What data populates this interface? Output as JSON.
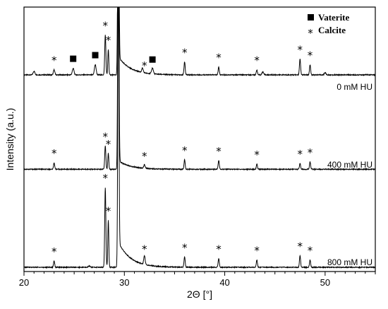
{
  "chart_data": {
    "type": "line",
    "xlabel": "2Θ [°]",
    "ylabel": "Intensity (a.u.)",
    "xlim": [
      20,
      55
    ],
    "xticks": [
      20,
      30,
      40,
      50
    ],
    "grid": false,
    "legend_position": "top-right",
    "legend": [
      {
        "marker": "square",
        "label": "Vaterite"
      },
      {
        "marker": "*",
        "label": "Calcite"
      }
    ],
    "series": [
      {
        "name": "0 mM HU",
        "baseline": 2.65,
        "peaks": [
          {
            "x": 21.0,
            "h": 0.05,
            "w": 0.12
          },
          {
            "x": 23.0,
            "h": 0.07,
            "w": 0.1
          },
          {
            "x": 24.9,
            "h": 0.09,
            "w": 0.12
          },
          {
            "x": 27.1,
            "h": 0.14,
            "w": 0.12
          },
          {
            "x": 28.1,
            "h": 0.55,
            "w": 0.08
          },
          {
            "x": 28.4,
            "h": 0.35,
            "w": 0.07
          },
          {
            "x": 29.4,
            "h": 4.0,
            "w": 0.08
          },
          {
            "x": 31.8,
            "h": 0.06,
            "w": 0.1
          },
          {
            "x": 32.8,
            "h": 0.08,
            "w": 0.12
          },
          {
            "x": 36.0,
            "h": 0.18,
            "w": 0.08
          },
          {
            "x": 39.4,
            "h": 0.11,
            "w": 0.08
          },
          {
            "x": 43.2,
            "h": 0.07,
            "w": 0.08
          },
          {
            "x": 43.8,
            "h": 0.04,
            "w": 0.12
          },
          {
            "x": 47.5,
            "h": 0.22,
            "w": 0.08
          },
          {
            "x": 48.5,
            "h": 0.14,
            "w": 0.08
          },
          {
            "x": 50.0,
            "h": 0.03,
            "w": 0.12
          }
        ],
        "hump": {
          "start": 29.4,
          "height": 0.25,
          "decay": 1.2
        },
        "stars": [
          23.0,
          28.1,
          28.4,
          32.0,
          36.0,
          39.4,
          43.2,
          47.5,
          48.5
        ],
        "squares": [
          24.9,
          27.1,
          32.8
        ]
      },
      {
        "name": "400 mM HU",
        "baseline": 1.35,
        "peaks": [
          {
            "x": 23.0,
            "h": 0.09,
            "w": 0.08
          },
          {
            "x": 28.1,
            "h": 0.32,
            "w": 0.08
          },
          {
            "x": 28.4,
            "h": 0.22,
            "w": 0.07
          },
          {
            "x": 29.4,
            "h": 4.0,
            "w": 0.08
          },
          {
            "x": 32.0,
            "h": 0.05,
            "w": 0.1
          },
          {
            "x": 36.0,
            "h": 0.13,
            "w": 0.08
          },
          {
            "x": 39.4,
            "h": 0.12,
            "w": 0.08
          },
          {
            "x": 43.2,
            "h": 0.07,
            "w": 0.08
          },
          {
            "x": 47.5,
            "h": 0.08,
            "w": 0.08
          },
          {
            "x": 48.5,
            "h": 0.1,
            "w": 0.08
          }
        ],
        "hump": {
          "start": 29.4,
          "height": 0.12,
          "decay": 1.2
        },
        "stars": [
          23.0,
          28.1,
          28.4,
          32.0,
          36.0,
          39.4,
          43.2,
          47.5,
          48.5
        ],
        "squares": []
      },
      {
        "name": "800 mM HU",
        "baseline": 0.0,
        "peaks": [
          {
            "x": 23.0,
            "h": 0.09,
            "w": 0.08
          },
          {
            "x": 26.5,
            "h": 0.02,
            "w": 0.12
          },
          {
            "x": 28.1,
            "h": 1.1,
            "w": 0.08
          },
          {
            "x": 28.4,
            "h": 0.65,
            "w": 0.07
          },
          {
            "x": 29.4,
            "h": 4.0,
            "w": 0.08
          },
          {
            "x": 32.0,
            "h": 0.12,
            "w": 0.1
          },
          {
            "x": 36.0,
            "h": 0.14,
            "w": 0.08
          },
          {
            "x": 39.4,
            "h": 0.12,
            "w": 0.08
          },
          {
            "x": 43.2,
            "h": 0.1,
            "w": 0.08
          },
          {
            "x": 47.5,
            "h": 0.16,
            "w": 0.08
          },
          {
            "x": 48.5,
            "h": 0.1,
            "w": 0.08
          }
        ],
        "hump": {
          "start": 29.4,
          "height": 0.35,
          "decay": 1.2
        },
        "stars": [
          23.0,
          28.1,
          28.4,
          32.0,
          36.0,
          39.4,
          43.2,
          47.5,
          48.5
        ],
        "squares": []
      }
    ]
  }
}
